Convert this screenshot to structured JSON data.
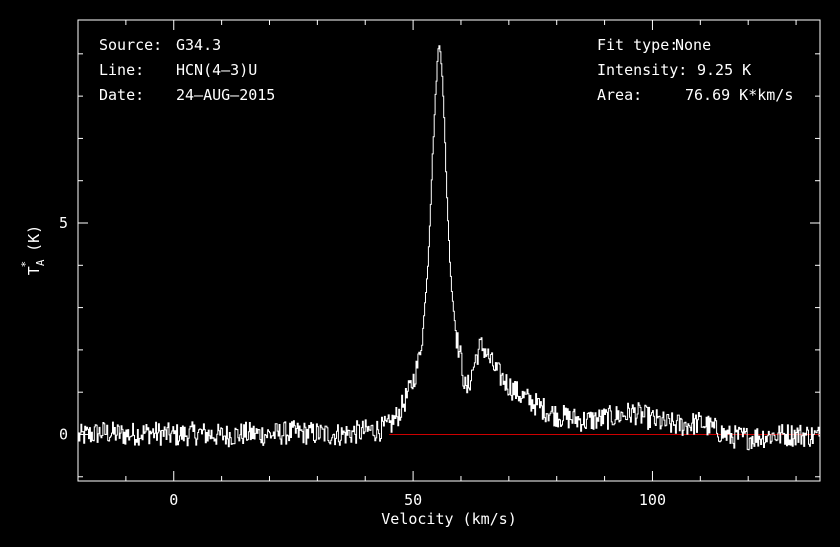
{
  "info": {
    "source_label": "Source:",
    "source_value": "G34.3",
    "line_label": "Line:",
    "line_value": "HCN(4–3)U",
    "date_label": "Date:",
    "date_value": "24–AUG–2015",
    "fit_label": "Fit type:",
    "fit_value": "None",
    "intensity_label": "Intensity:",
    "intensity_value": "9.25 K",
    "area_label": "Area:",
    "area_value": "76.69 K*km/s"
  },
  "chart_data": {
    "type": "line",
    "xlabel": "Velocity (km/s)",
    "ylabel_main": "T",
    "ylabel_sup": "*",
    "ylabel_sub": "A",
    "ylabel_unit": " (K)",
    "xlim": [
      -20,
      135
    ],
    "ylim": [
      -1.1,
      9.8
    ],
    "x_ticks": [
      0,
      50,
      100
    ],
    "x_tick_labels": [
      "0",
      "50",
      "100"
    ],
    "y_ticks": [
      0,
      5
    ],
    "y_tick_labels": [
      "0",
      "5"
    ],
    "baseline": {
      "y": 0,
      "x_start": 45,
      "x_end": 135,
      "color": "#cc0000"
    },
    "line_color": "#ffffff",
    "series": [
      {
        "x": [
          -20,
          -15,
          -10,
          -5,
          0,
          5,
          10,
          15,
          20,
          25,
          30,
          35,
          40,
          43,
          45,
          46,
          47,
          48,
          49,
          50,
          51,
          52,
          53,
          53.5,
          54,
          54.5,
          55,
          55.3,
          55.6,
          56,
          56.5,
          57,
          57.5,
          58,
          58.5,
          59,
          59.5,
          60,
          60.5,
          61,
          62,
          63,
          64,
          65,
          66,
          67,
          68,
          70,
          72,
          75,
          78,
          80,
          83,
          86,
          90,
          93,
          96,
          100,
          103,
          106,
          110,
          113,
          116,
          120,
          125,
          130,
          135
        ],
        "values": [
          -0.05,
          0.05,
          0.0,
          0.05,
          -0.02,
          0.03,
          -0.03,
          0.02,
          0.0,
          0.05,
          0.02,
          0.0,
          0.08,
          0.12,
          0.2,
          0.35,
          0.5,
          0.75,
          1.0,
          1.3,
          1.7,
          2.5,
          4.0,
          5.2,
          6.6,
          7.8,
          8.8,
          9.25,
          9.1,
          8.5,
          7.2,
          5.6,
          4.3,
          3.4,
          2.8,
          2.3,
          2.0,
          1.75,
          1.3,
          1.0,
          1.35,
          1.8,
          2.1,
          2.0,
          1.75,
          1.55,
          1.4,
          1.15,
          0.95,
          0.75,
          0.55,
          0.45,
          0.38,
          0.32,
          0.38,
          0.45,
          0.52,
          0.35,
          0.25,
          0.22,
          0.28,
          0.12,
          -0.05,
          -0.08,
          -0.02,
          0.0,
          -0.05
        ]
      }
    ]
  }
}
